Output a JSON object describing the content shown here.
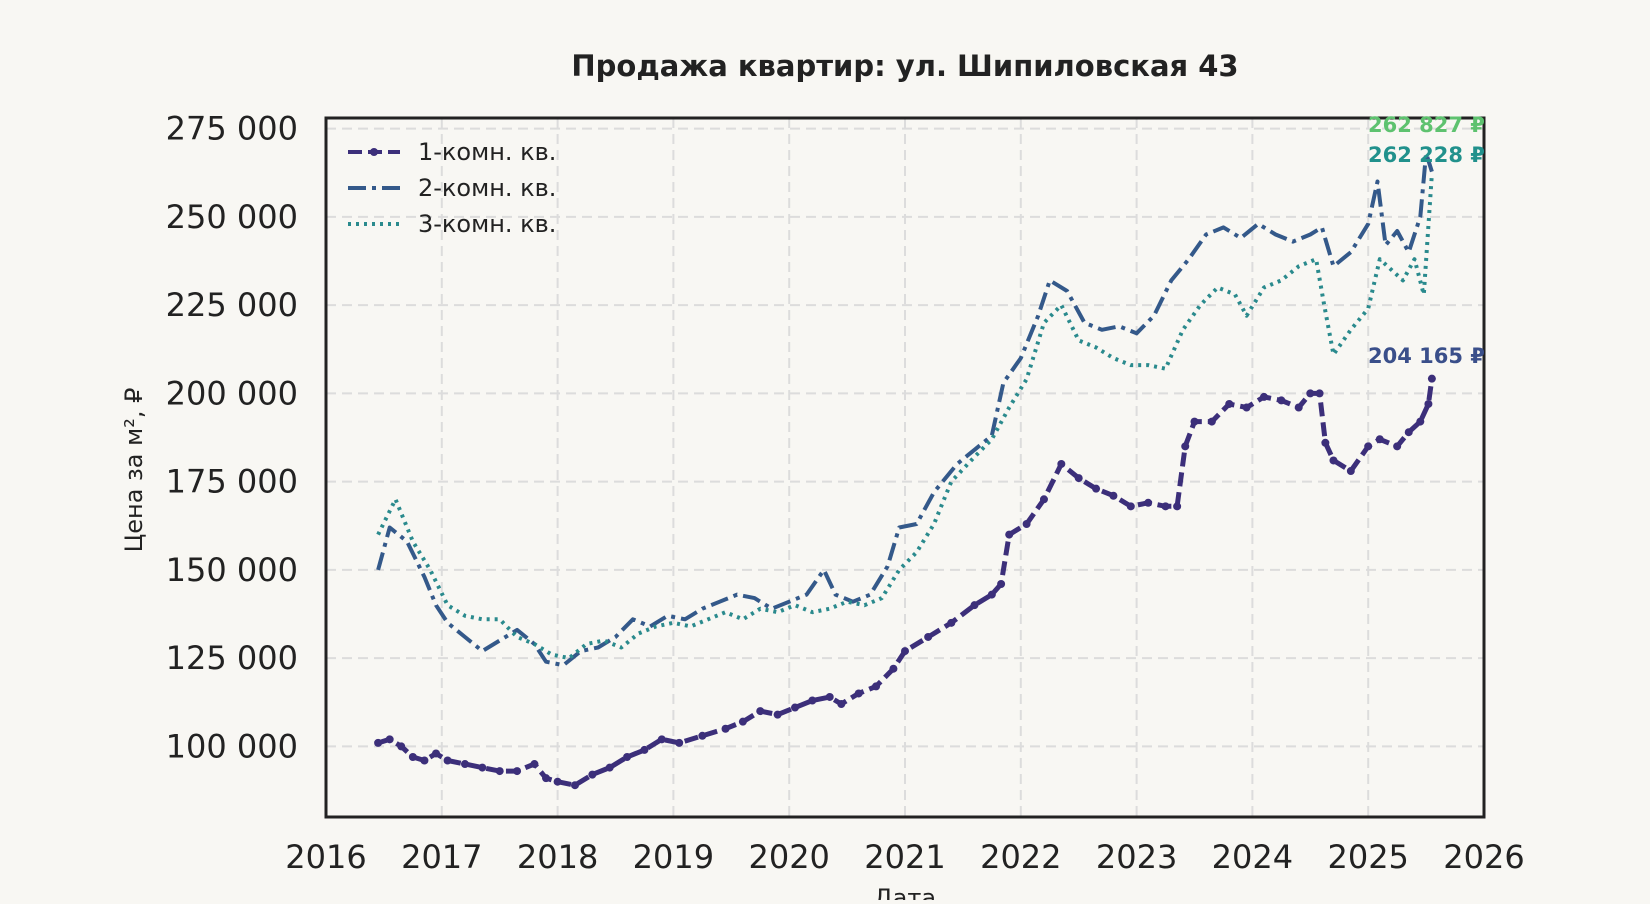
{
  "chart_data": {
    "type": "line",
    "title": "Продажа квартир: ул. Шипиловская 43",
    "xlabel": "Дата",
    "ylabel": "Цена за м², ₽",
    "xlim": [
      2016.0,
      2026.0
    ],
    "ylim": [
      80000,
      278000
    ],
    "x_ticks": [
      2016,
      2017,
      2018,
      2019,
      2020,
      2021,
      2022,
      2023,
      2024,
      2025,
      2026
    ],
    "y_ticks": [
      100000,
      125000,
      150000,
      175000,
      200000,
      225000,
      250000,
      275000
    ],
    "x_tick_labels": [
      "2016",
      "2017",
      "2018",
      "2019",
      "2020",
      "2021",
      "2022",
      "2023",
      "2024",
      "2025",
      "2026"
    ],
    "y_tick_labels": [
      "100 000",
      "125 000",
      "150 000",
      "175 000",
      "200 000",
      "225 000",
      "250 000",
      "275 000"
    ],
    "grid": true,
    "legend_position": "top-left",
    "series": [
      {
        "name": "1-комн. кв.",
        "color": "#3c2f7a",
        "style": "dashed-with-dots",
        "x": [
          2016.45,
          2016.55,
          2016.65,
          2016.75,
          2016.85,
          2016.95,
          2017.05,
          2017.2,
          2017.35,
          2017.5,
          2017.65,
          2017.8,
          2017.9,
          2018.0,
          2018.15,
          2018.3,
          2018.45,
          2018.6,
          2018.75,
          2018.9,
          2019.05,
          2019.25,
          2019.45,
          2019.6,
          2019.75,
          2019.9,
          2020.05,
          2020.2,
          2020.35,
          2020.45,
          2020.6,
          2020.75,
          2020.9,
          2021.0,
          2021.2,
          2021.4,
          2021.6,
          2021.75,
          2021.83,
          2021.9,
          2022.05,
          2022.2,
          2022.35,
          2022.5,
          2022.65,
          2022.8,
          2022.95,
          2023.1,
          2023.25,
          2023.35,
          2023.42,
          2023.5,
          2023.65,
          2023.8,
          2023.95,
          2024.1,
          2024.25,
          2024.4,
          2024.5,
          2024.58,
          2024.63,
          2024.7,
          2024.85,
          2025.0,
          2025.1,
          2025.25,
          2025.35,
          2025.45,
          2025.52,
          2025.55
        ],
        "y": [
          101000,
          102000,
          100000,
          97000,
          96000,
          98000,
          96000,
          95000,
          94000,
          93000,
          93000,
          95000,
          91000,
          90000,
          89000,
          92000,
          94000,
          97000,
          99000,
          102000,
          101000,
          103000,
          105000,
          107000,
          110000,
          109000,
          111000,
          113000,
          114000,
          112000,
          115000,
          117000,
          122000,
          127000,
          131000,
          135000,
          140000,
          143000,
          146000,
          160000,
          163000,
          170000,
          180000,
          176000,
          173000,
          171000,
          168000,
          169000,
          168000,
          168000,
          185000,
          192000,
          192000,
          197000,
          196000,
          199000,
          198000,
          196000,
          200000,
          200000,
          186000,
          181000,
          178000,
          185000,
          187000,
          185000,
          189000,
          192000,
          197000,
          204165
        ]
      },
      {
        "name": "2-комн. кв.",
        "color": "#34598a",
        "style": "dash-dot",
        "x": [
          2016.45,
          2016.55,
          2016.7,
          2016.85,
          2016.95,
          2017.05,
          2017.2,
          2017.35,
          2017.5,
          2017.65,
          2017.8,
          2017.9,
          2018.05,
          2018.2,
          2018.35,
          2018.5,
          2018.65,
          2018.8,
          2018.95,
          2019.1,
          2019.25,
          2019.4,
          2019.55,
          2019.7,
          2019.85,
          2020.0,
          2020.15,
          2020.3,
          2020.4,
          2020.55,
          2020.7,
          2020.85,
          2020.95,
          2021.1,
          2021.25,
          2021.45,
          2021.6,
          2021.75,
          2021.85,
          2022.0,
          2022.15,
          2022.25,
          2022.4,
          2022.55,
          2022.7,
          2022.85,
          2023.0,
          2023.15,
          2023.3,
          2023.45,
          2023.6,
          2023.75,
          2023.9,
          2024.05,
          2024.2,
          2024.35,
          2024.5,
          2024.6,
          2024.7,
          2024.85,
          2025.0,
          2025.08,
          2025.15,
          2025.25,
          2025.35,
          2025.45,
          2025.5,
          2025.55
        ],
        "y": [
          150000,
          162000,
          158000,
          148000,
          140000,
          135000,
          131000,
          127000,
          130000,
          133000,
          129000,
          124000,
          123000,
          127000,
          128000,
          131000,
          136000,
          134000,
          137000,
          136000,
          139000,
          141000,
          143000,
          142000,
          139000,
          141000,
          143000,
          150000,
          143000,
          141000,
          143000,
          151000,
          162000,
          163000,
          172000,
          180000,
          184000,
          188000,
          203000,
          210000,
          222000,
          232000,
          229000,
          220000,
          218000,
          219000,
          217000,
          222000,
          232000,
          238000,
          245000,
          247000,
          244000,
          248000,
          245000,
          243000,
          245000,
          247000,
          236000,
          240000,
          248000,
          260000,
          242000,
          246000,
          240000,
          250000,
          268000,
          262827
        ]
      },
      {
        "name": "3-комн. кв.",
        "color": "#2a8a8d",
        "style": "dotted",
        "x": [
          2016.45,
          2016.6,
          2016.75,
          2016.9,
          2017.05,
          2017.2,
          2017.35,
          2017.5,
          2017.65,
          2017.8,
          2017.95,
          2018.1,
          2018.25,
          2018.4,
          2018.55,
          2018.7,
          2018.85,
          2019.0,
          2019.15,
          2019.3,
          2019.45,
          2019.6,
          2019.75,
          2019.9,
          2020.05,
          2020.2,
          2020.35,
          2020.5,
          2020.65,
          2020.8,
          2020.95,
          2021.1,
          2021.25,
          2021.4,
          2021.6,
          2021.75,
          2021.9,
          2022.05,
          2022.2,
          2022.35,
          2022.5,
          2022.65,
          2022.8,
          2022.95,
          2023.1,
          2023.25,
          2023.4,
          2023.55,
          2023.7,
          2023.85,
          2023.95,
          2024.1,
          2024.25,
          2024.4,
          2024.55,
          2024.62,
          2024.7,
          2024.85,
          2025.0,
          2025.1,
          2025.2,
          2025.3,
          2025.4,
          2025.48,
          2025.55
        ],
        "y": [
          160000,
          170000,
          158000,
          150000,
          140000,
          137000,
          136000,
          136000,
          131000,
          129000,
          126000,
          125000,
          129000,
          130000,
          128000,
          132000,
          134000,
          135000,
          134000,
          136000,
          138000,
          136000,
          139000,
          138000,
          140000,
          138000,
          139000,
          141000,
          140000,
          142000,
          150000,
          155000,
          163000,
          175000,
          182000,
          187000,
          196000,
          204000,
          220000,
          225000,
          215000,
          213000,
          210000,
          208000,
          208000,
          207000,
          218000,
          225000,
          230000,
          228000,
          222000,
          230000,
          232000,
          236000,
          238000,
          225000,
          211000,
          218000,
          224000,
          238000,
          235000,
          232000,
          238000,
          228000,
          262228
        ]
      }
    ],
    "annotations": [
      {
        "text": "262 827 ₽",
        "color": "#5ec26f",
        "x": 2025.55,
        "y": 262827
      },
      {
        "text": "262 228 ₽",
        "color": "#21918c",
        "x": 2025.55,
        "y": 262228
      },
      {
        "text": "204 165 ₽",
        "color": "#3a4f8a",
        "x": 2025.55,
        "y": 204165
      }
    ]
  }
}
